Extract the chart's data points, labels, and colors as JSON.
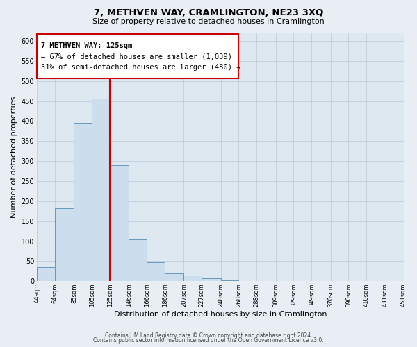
{
  "title": "7, METHVEN WAY, CRAMLINGTON, NE23 3XQ",
  "subtitle": "Size of property relative to detached houses in Cramlington",
  "xlabel": "Distribution of detached houses by size in Cramlington",
  "ylabel": "Number of detached properties",
  "footer_line1": "Contains HM Land Registry data © Crown copyright and database right 2024.",
  "footer_line2": "Contains public sector information licensed under the Open Government Licence v3.0.",
  "bar_color": "#ccdded",
  "bar_edge_color": "#6699bb",
  "background_color": "#e8eef4",
  "plot_bg_color": "#dde8f0",
  "grid_color": "#b8cad8",
  "vline_x": 125,
  "vline_color": "#cc0000",
  "annotation_title": "7 METHVEN WAY: 125sqm",
  "annotation_line1": "← 67% of detached houses are smaller (1,039)",
  "annotation_line2": "31% of semi-detached houses are larger (480) →",
  "annotation_box_color": "#ffffff",
  "annotation_box_edge": "#cc0000",
  "bin_edges": [
    44,
    64,
    85,
    105,
    125,
    146,
    166,
    186,
    207,
    227,
    248,
    268,
    288,
    309,
    329,
    349,
    370,
    390,
    410,
    431,
    451
  ],
  "bar_heights": [
    35,
    183,
    395,
    457,
    290,
    105,
    48,
    20,
    15,
    8,
    2,
    1,
    0,
    0,
    1,
    0,
    0,
    0,
    1,
    0
  ],
  "ylim": [
    0,
    620
  ],
  "yticks": [
    0,
    50,
    100,
    150,
    200,
    250,
    300,
    350,
    400,
    450,
    500,
    550,
    600
  ]
}
